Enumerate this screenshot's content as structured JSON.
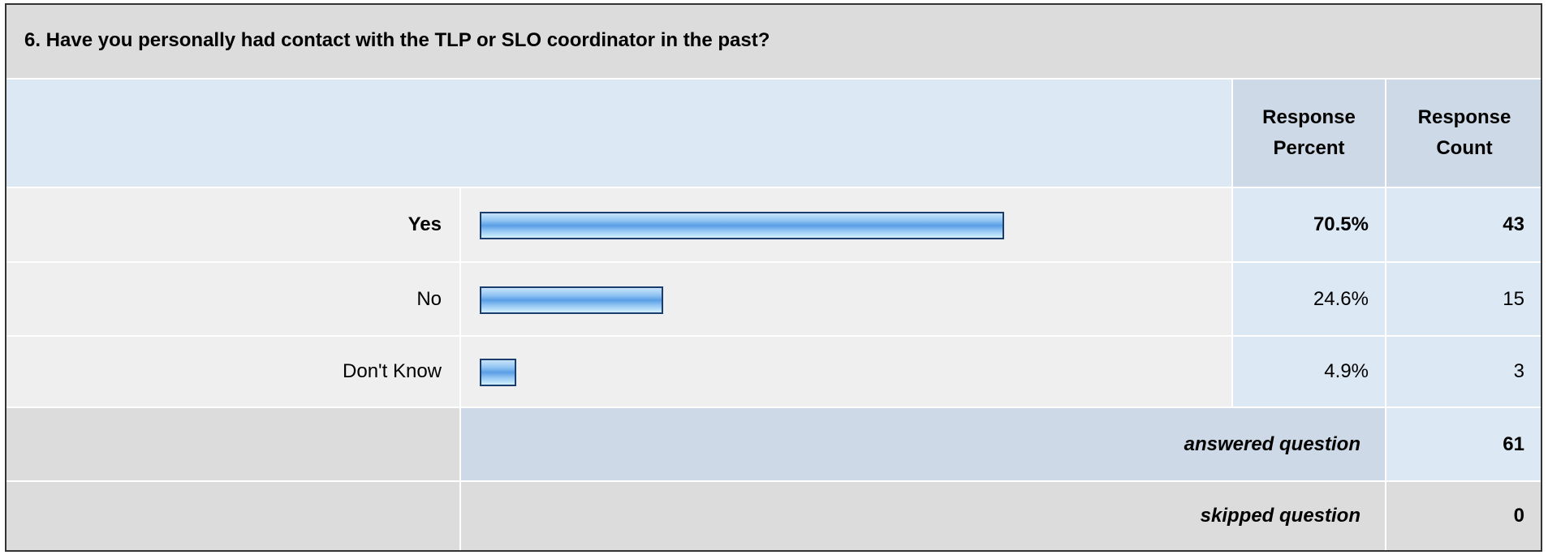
{
  "chart_data": {
    "type": "bar",
    "title": "6. Have you personally had contact with the TLP or SLO coordinator in the past?",
    "columns": [
      "Response Percent",
      "Response Count"
    ],
    "categories": [
      "Yes",
      "No",
      "Don't Know"
    ],
    "values": [
      70.5,
      24.6,
      4.9
    ],
    "value_labels": [
      "70.5%",
      "24.6%",
      "4.9%"
    ],
    "counts": [
      43,
      15,
      3
    ],
    "xlim": [
      0,
      100
    ],
    "summary": [
      {
        "label": "answered question",
        "value": 61
      },
      {
        "label": "skipped question",
        "value": 0
      }
    ]
  }
}
